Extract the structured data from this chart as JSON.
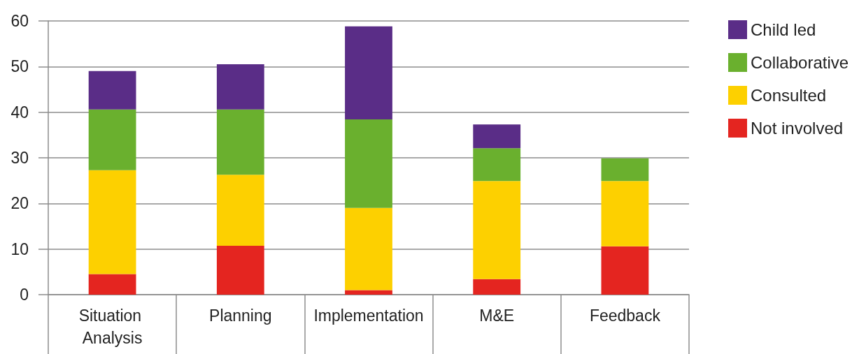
{
  "chart_data": {
    "type": "bar",
    "stacked": true,
    "categories": [
      "Situation Analysis",
      "Planning",
      "Implementation",
      "M&E",
      "Feedback"
    ],
    "series": [
      {
        "name": "Not involved",
        "color": "#e42520",
        "values": [
          4.5,
          10.7,
          1.0,
          3.4,
          10.6
        ]
      },
      {
        "name": "Consulted",
        "color": "#fdd000",
        "values": [
          22.8,
          15.6,
          18.0,
          21.5,
          14.3
        ]
      },
      {
        "name": "Collaborative",
        "color": "#6ab02e",
        "values": [
          13.3,
          14.3,
          19.4,
          7.2,
          5.0
        ]
      },
      {
        "name": "Child led",
        "color": "#5a2d87",
        "values": [
          8.4,
          9.9,
          20.4,
          5.2,
          null
        ]
      }
    ],
    "ylim": [
      0,
      60
    ],
    "yticks": [
      0,
      10,
      20,
      30,
      40,
      50,
      60
    ],
    "grid": "y",
    "legend": "top right"
  }
}
